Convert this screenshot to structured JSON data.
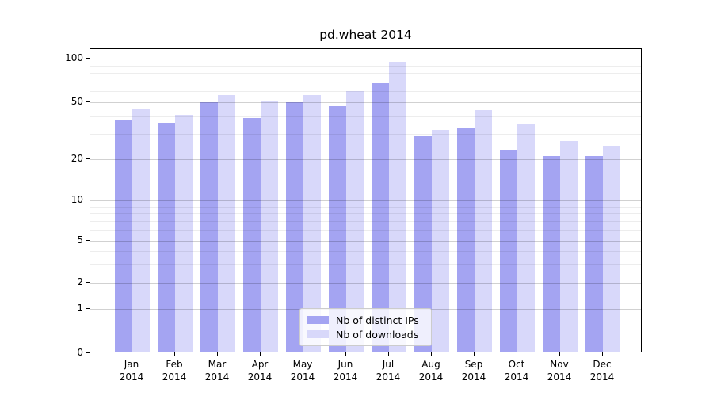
{
  "figure": {
    "background": "#ffffff"
  },
  "chart_data": {
    "type": "bar",
    "title": "pd.wheat 2014",
    "xlabel": "",
    "ylabel": "",
    "yscale": "symlog",
    "grid": true,
    "ylim": [
      0,
      117
    ],
    "yticks": [
      100,
      50,
      20,
      10,
      5,
      2,
      1,
      0
    ],
    "minor_yticks": [
      3,
      4,
      6,
      7,
      8,
      9,
      30,
      40,
      60,
      70,
      80,
      90
    ],
    "months": [
      "Jan",
      "Feb",
      "Mar",
      "Apr",
      "May",
      "Jun",
      "Jul",
      "Aug",
      "Sep",
      "Oct",
      "Nov",
      "Dec"
    ],
    "year": "2014",
    "categories": [
      "Jan 2014",
      "Feb 2014",
      "Mar 2014",
      "Apr 2014",
      "May 2014",
      "Jun 2014",
      "Jul 2014",
      "Aug 2014",
      "Sep 2014",
      "Oct 2014",
      "Nov 2014",
      "Dec 2014"
    ],
    "series": [
      {
        "name": "Nb of distinct IPs",
        "color": "#a4a4f2",
        "values": [
          38,
          36,
          50,
          39,
          50,
          47,
          68,
          29,
          33,
          23,
          21,
          21
        ]
      },
      {
        "name": "Nb of downloads",
        "color": "#d8d8fa",
        "values": [
          45,
          41,
          56,
          51,
          56,
          60,
          95,
          32,
          44,
          35,
          27,
          25
        ]
      }
    ],
    "legend": {
      "position": "lower-center-inside",
      "entries": [
        "Nb of distinct IPs",
        "Nb of downloads"
      ]
    }
  }
}
